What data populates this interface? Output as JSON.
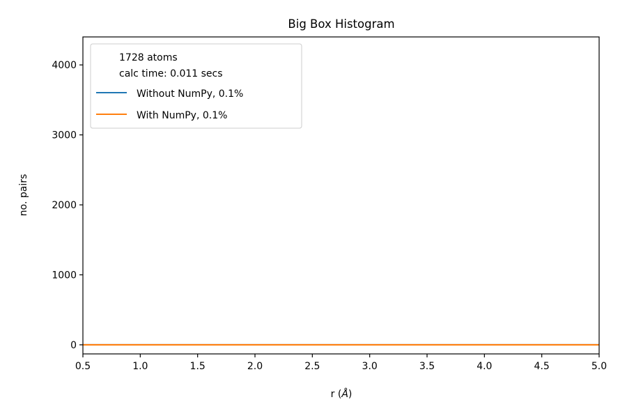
{
  "chart_data": {
    "type": "line",
    "title": "Big Box Histogram",
    "xlabel_main": "r (",
    "xlabel_unit": "Å",
    "xlabel_end": ")",
    "ylabel": "no. pairs",
    "xlim": [
      0.5,
      5.0
    ],
    "ylim": [
      -130,
      4400
    ],
    "x_ticks": [
      0.5,
      1.0,
      1.5,
      2.0,
      2.5,
      3.0,
      3.5,
      4.0,
      4.5,
      5.0
    ],
    "x_tick_labels": [
      "0.5",
      "1.0",
      "1.5",
      "2.0",
      "2.5",
      "3.0",
      "3.5",
      "4.0",
      "4.5",
      "5.0"
    ],
    "y_ticks": [
      0,
      1000,
      2000,
      3000,
      4000
    ],
    "y_tick_labels": [
      "0",
      "1000",
      "2000",
      "3000",
      "4000"
    ],
    "grid": false,
    "legend": {
      "placement": "upper-left",
      "header_lines": [
        "1728 atoms",
        "calc time: 0.011 secs"
      ]
    },
    "series": [
      {
        "name": "Without NumPy, 0.1%",
        "color": "#1f77b4",
        "x": [
          0.5,
          1.0,
          1.5,
          2.0,
          2.5,
          3.0,
          3.5,
          4.0,
          4.5,
          5.0
        ],
        "y": [
          0,
          0,
          0,
          0,
          0,
          0,
          0,
          0,
          0,
          0
        ]
      },
      {
        "name": "With NumPy, 0.1%",
        "color": "#ff7f0e",
        "x": [
          0.5,
          1.0,
          1.5,
          2.0,
          2.5,
          3.0,
          3.5,
          4.0,
          4.5,
          5.0
        ],
        "y": [
          0,
          0,
          0,
          0,
          0,
          0,
          0,
          0,
          0,
          0
        ]
      }
    ]
  }
}
